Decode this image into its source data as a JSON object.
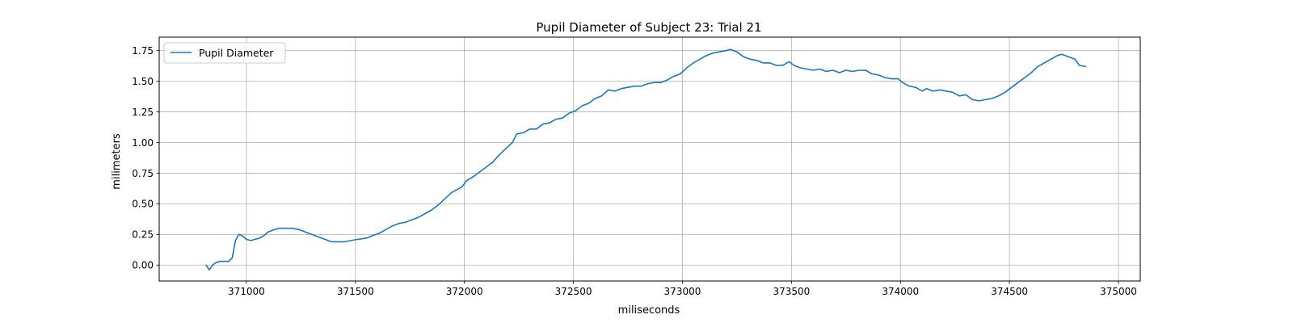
{
  "chart_data": {
    "type": "line",
    "title": "Pupil Diameter of Subject 23: Trial 21",
    "xlabel": "miliseconds",
    "ylabel": "milimeters",
    "xlim": [
      370600,
      375100
    ],
    "ylim": [
      -0.13,
      1.86
    ],
    "x_ticks": [
      371000,
      371500,
      372000,
      372500,
      373000,
      373500,
      374000,
      374500,
      375000
    ],
    "x_tick_labels": [
      "371000",
      "371500",
      "372000",
      "372500",
      "373000",
      "373500",
      "374000",
      "374500",
      "375000"
    ],
    "y_ticks": [
      0.0,
      0.25,
      0.5,
      0.75,
      1.0,
      1.25,
      1.5,
      1.75
    ],
    "y_tick_labels": [
      "0.00",
      "0.25",
      "0.50",
      "0.75",
      "1.00",
      "1.25",
      "1.50",
      "1.75"
    ],
    "grid": true,
    "legend": "top-left",
    "series": [
      {
        "name": "Pupil Diameter",
        "color": "#1f77b4",
        "points": [
          [
            370815,
            0.0
          ],
          [
            370830,
            -0.04
          ],
          [
            370845,
            0.0
          ],
          [
            370860,
            0.02
          ],
          [
            370880,
            0.03
          ],
          [
            370900,
            0.03
          ],
          [
            370920,
            0.03
          ],
          [
            370935,
            0.06
          ],
          [
            370950,
            0.2
          ],
          [
            370965,
            0.25
          ],
          [
            370980,
            0.24
          ],
          [
            371000,
            0.21
          ],
          [
            371020,
            0.2
          ],
          [
            371040,
            0.21
          ],
          [
            371060,
            0.22
          ],
          [
            371080,
            0.24
          ],
          [
            371100,
            0.27
          ],
          [
            371130,
            0.29
          ],
          [
            371150,
            0.3
          ],
          [
            371180,
            0.3
          ],
          [
            371210,
            0.3
          ],
          [
            371240,
            0.29
          ],
          [
            371270,
            0.27
          ],
          [
            371300,
            0.25
          ],
          [
            371330,
            0.23
          ],
          [
            371360,
            0.21
          ],
          [
            371390,
            0.19
          ],
          [
            371420,
            0.19
          ],
          [
            371450,
            0.19
          ],
          [
            371480,
            0.2
          ],
          [
            371510,
            0.21
          ],
          [
            371550,
            0.22
          ],
          [
            371580,
            0.24
          ],
          [
            371610,
            0.26
          ],
          [
            371640,
            0.29
          ],
          [
            371670,
            0.32
          ],
          [
            371700,
            0.34
          ],
          [
            371730,
            0.35
          ],
          [
            371760,
            0.37
          ],
          [
            371790,
            0.39
          ],
          [
            371820,
            0.42
          ],
          [
            371850,
            0.45
          ],
          [
            371880,
            0.49
          ],
          [
            371910,
            0.54
          ],
          [
            371940,
            0.59
          ],
          [
            371970,
            0.62
          ],
          [
            371990,
            0.64
          ],
          [
            372010,
            0.69
          ],
          [
            372040,
            0.72
          ],
          [
            372070,
            0.76
          ],
          [
            372100,
            0.8
          ],
          [
            372130,
            0.84
          ],
          [
            372160,
            0.9
          ],
          [
            372190,
            0.95
          ],
          [
            372220,
            1.0
          ],
          [
            372240,
            1.07
          ],
          [
            372270,
            1.08
          ],
          [
            372300,
            1.11
          ],
          [
            372330,
            1.11
          ],
          [
            372360,
            1.15
          ],
          [
            372390,
            1.16
          ],
          [
            372420,
            1.19
          ],
          [
            372450,
            1.2
          ],
          [
            372480,
            1.24
          ],
          [
            372510,
            1.26
          ],
          [
            372540,
            1.3
          ],
          [
            372570,
            1.32
          ],
          [
            372600,
            1.36
          ],
          [
            372630,
            1.38
          ],
          [
            372660,
            1.43
          ],
          [
            372690,
            1.42
          ],
          [
            372720,
            1.44
          ],
          [
            372750,
            1.45
          ],
          [
            372780,
            1.46
          ],
          [
            372810,
            1.46
          ],
          [
            372840,
            1.48
          ],
          [
            372870,
            1.49
          ],
          [
            372900,
            1.49
          ],
          [
            372930,
            1.51
          ],
          [
            372960,
            1.54
          ],
          [
            372990,
            1.56
          ],
          [
            373020,
            1.61
          ],
          [
            373050,
            1.65
          ],
          [
            373080,
            1.68
          ],
          [
            373110,
            1.71
          ],
          [
            373140,
            1.73
          ],
          [
            373170,
            1.74
          ],
          [
            373200,
            1.75
          ],
          [
            373220,
            1.76
          ],
          [
            373250,
            1.74
          ],
          [
            373280,
            1.7
          ],
          [
            373310,
            1.68
          ],
          [
            373340,
            1.67
          ],
          [
            373370,
            1.65
          ],
          [
            373400,
            1.65
          ],
          [
            373430,
            1.63
          ],
          [
            373460,
            1.63
          ],
          [
            373490,
            1.66
          ],
          [
            373510,
            1.63
          ],
          [
            373540,
            1.61
          ],
          [
            373570,
            1.6
          ],
          [
            373600,
            1.59
          ],
          [
            373630,
            1.6
          ],
          [
            373660,
            1.58
          ],
          [
            373690,
            1.59
          ],
          [
            373720,
            1.57
          ],
          [
            373750,
            1.59
          ],
          [
            373780,
            1.58
          ],
          [
            373810,
            1.59
          ],
          [
            373840,
            1.59
          ],
          [
            373870,
            1.56
          ],
          [
            373900,
            1.55
          ],
          [
            373930,
            1.53
          ],
          [
            373960,
            1.52
          ],
          [
            373990,
            1.52
          ],
          [
            374010,
            1.49
          ],
          [
            374040,
            1.46
          ],
          [
            374070,
            1.45
          ],
          [
            374100,
            1.42
          ],
          [
            374120,
            1.44
          ],
          [
            374150,
            1.42
          ],
          [
            374180,
            1.43
          ],
          [
            374210,
            1.42
          ],
          [
            374240,
            1.41
          ],
          [
            374270,
            1.38
          ],
          [
            374300,
            1.39
          ],
          [
            374330,
            1.35
          ],
          [
            374360,
            1.34
          ],
          [
            374390,
            1.35
          ],
          [
            374420,
            1.36
          ],
          [
            374450,
            1.38
          ],
          [
            374480,
            1.41
          ],
          [
            374510,
            1.45
          ],
          [
            374540,
            1.49
          ],
          [
            374570,
            1.53
          ],
          [
            374600,
            1.57
          ],
          [
            374630,
            1.62
          ],
          [
            374660,
            1.65
          ],
          [
            374690,
            1.68
          ],
          [
            374720,
            1.71
          ],
          [
            374740,
            1.72
          ],
          [
            374770,
            1.7
          ],
          [
            374800,
            1.68
          ],
          [
            374820,
            1.63
          ],
          [
            374850,
            1.62
          ]
        ]
      }
    ]
  }
}
